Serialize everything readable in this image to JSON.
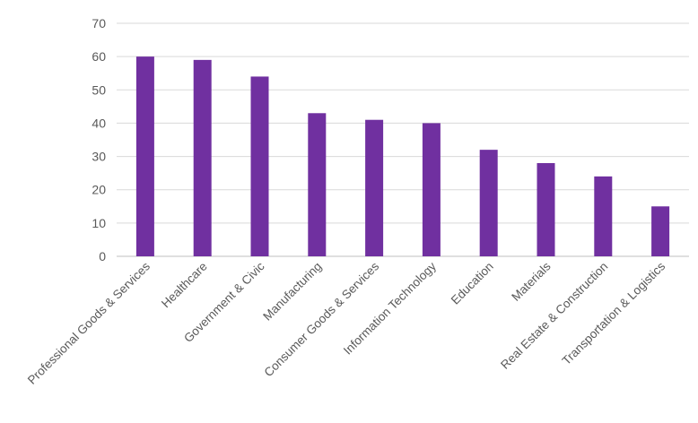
{
  "chart_data": {
    "type": "bar",
    "title": "",
    "xlabel": "",
    "ylabel": "",
    "ylim": [
      0,
      70
    ],
    "yticks": [
      0,
      10,
      20,
      30,
      40,
      50,
      60,
      70
    ],
    "grid": true,
    "legend": "none",
    "bar_color": "#7030A0",
    "categories": [
      "Professional Goods & Services",
      "Healthcare",
      "Government & Civic",
      "Manufacturing",
      "Consumer Goods & Services",
      "Information Technology",
      "Education",
      "Materials",
      "Real Estate & Construction",
      "Transportation & Logistics"
    ],
    "values": [
      60,
      59,
      54,
      43,
      41,
      40,
      32,
      28,
      24,
      15
    ]
  }
}
